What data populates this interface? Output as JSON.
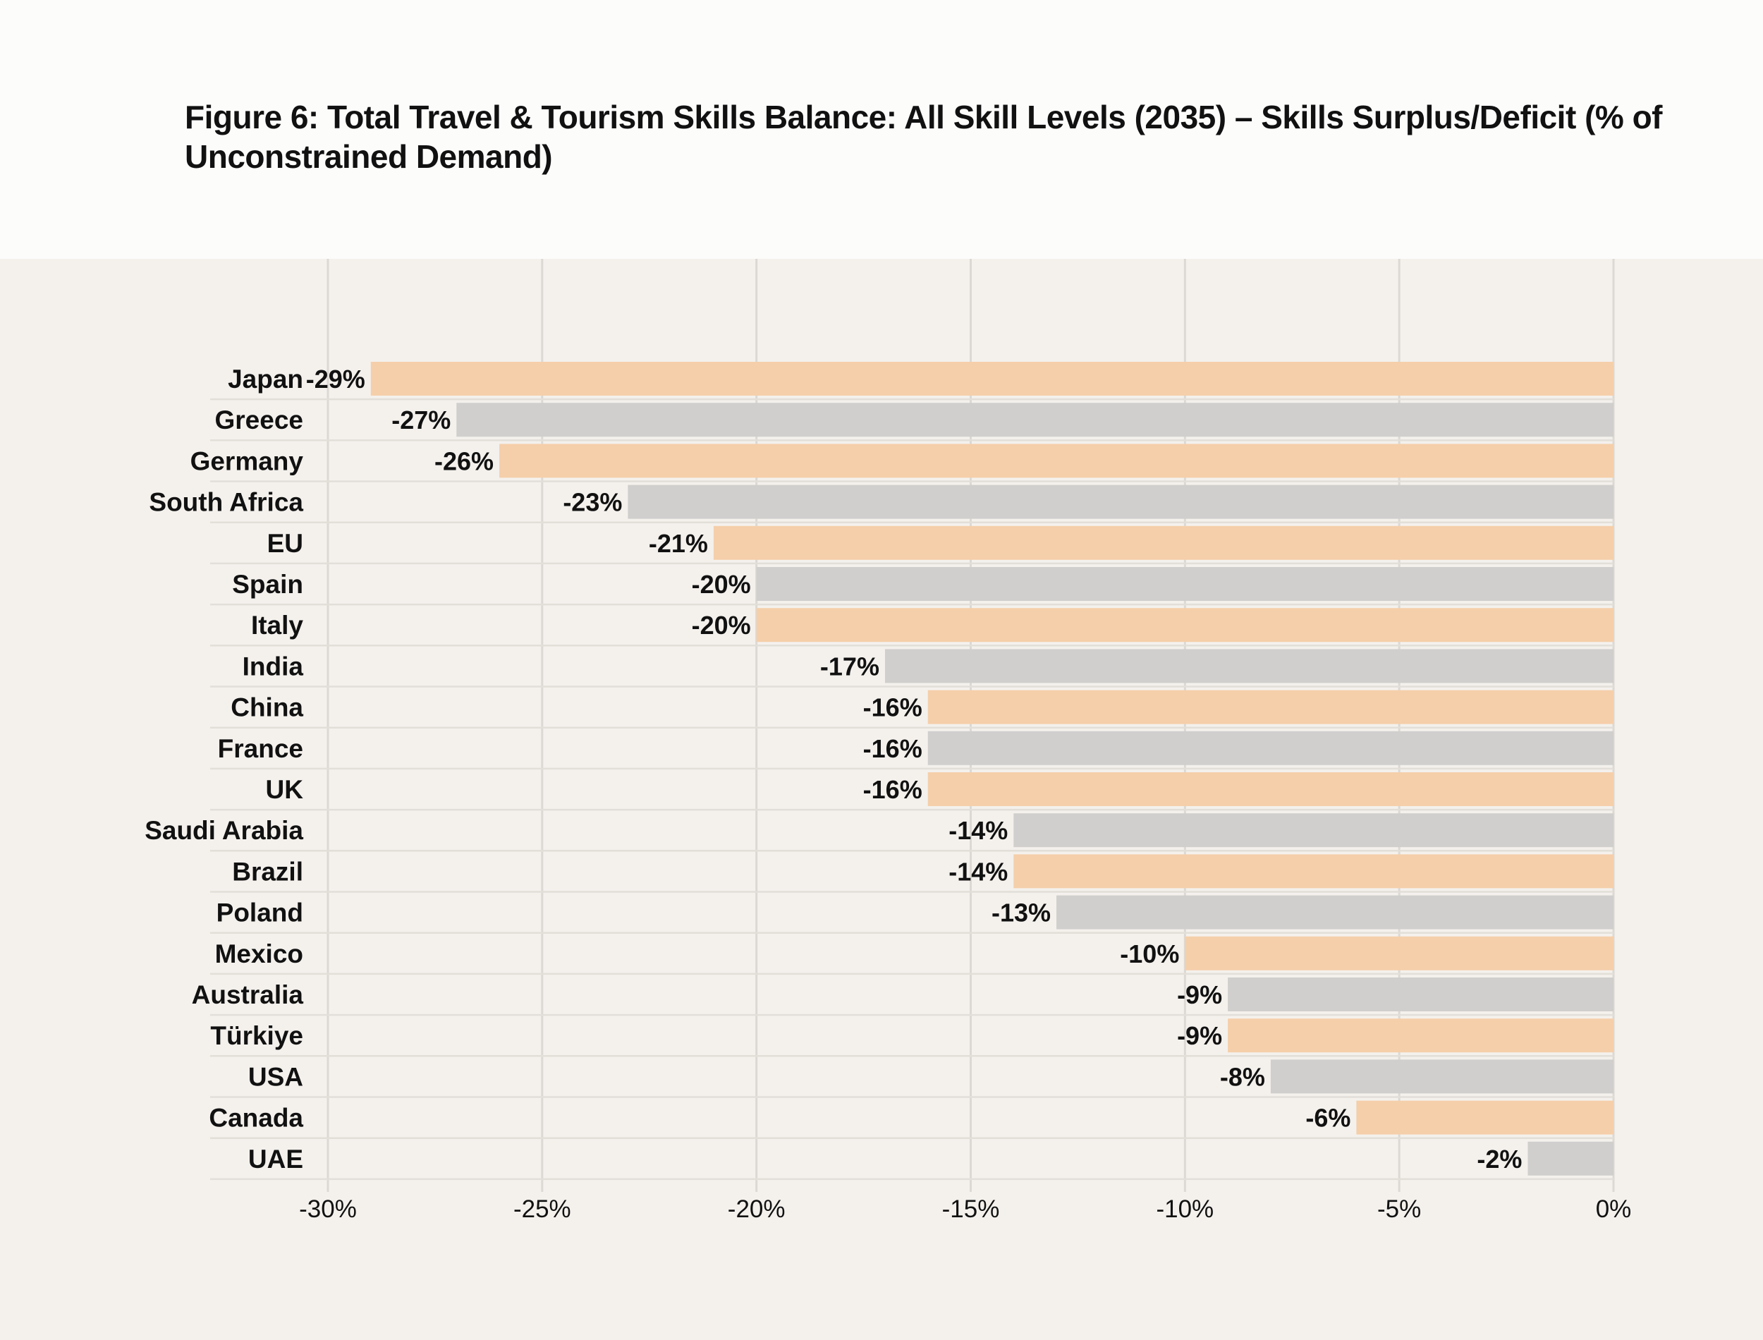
{
  "chart_data": {
    "type": "bar",
    "orientation": "horizontal",
    "title": "Figure 6: Total Travel & Tourism Skills Balance: All Skill Levels (2035) – Skills Surplus/Deficit (% of Unconstrained Demand)",
    "xlabel": "",
    "ylabel": "",
    "xlim": [
      -30,
      0
    ],
    "xticks": [
      "-30%",
      "-25%",
      "-20%",
      "-15%",
      "-10%",
      "-5%",
      "0%"
    ],
    "xtick_values": [
      -30,
      -25,
      -20,
      -15,
      -10,
      -5,
      0
    ],
    "grid": true,
    "categories": [
      "Japan",
      "Greece",
      "Germany",
      "South Africa",
      "EU",
      "Spain",
      "Italy",
      "India",
      "China",
      "France",
      "UK",
      "Saudi Arabia",
      "Brazil",
      "Poland",
      "Mexico",
      "Australia",
      "Türkiye",
      "USA",
      "Canada",
      "UAE"
    ],
    "values": [
      -29,
      -27,
      -26,
      -23,
      -21,
      -20,
      -20,
      -17,
      -16,
      -16,
      -16,
      -14,
      -14,
      -13,
      -10,
      -9,
      -9,
      -8,
      -6,
      -2
    ],
    "value_labels": [
      "-29%",
      "-27%",
      "-26%",
      "-23%",
      "-21%",
      "-20%",
      "-20%",
      "-17%",
      "-16%",
      "-16%",
      "-16%",
      "-14%",
      "-14%",
      "-13%",
      "-10%",
      "-9%",
      "-9%",
      "-8%",
      "-6%",
      "-2%"
    ],
    "colors": [
      "#f5cfaa",
      "#d0cfcd"
    ]
  }
}
